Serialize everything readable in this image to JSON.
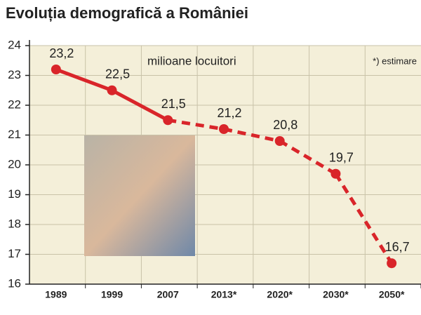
{
  "chart_data": {
    "type": "line",
    "title": "Evoluția demografică a României",
    "annotations": [
      "milioane locuitori",
      "*) estimare"
    ],
    "categories": [
      "1989",
      "1999",
      "2007",
      "2013*",
      "2020*",
      "2030*",
      "2050*"
    ],
    "values": [
      23.2,
      22.5,
      21.5,
      21.2,
      20.8,
      19.7,
      16.7
    ],
    "value_labels": [
      "23,2",
      "22,5",
      "21,5",
      "21,2",
      "20,8",
      "19,7",
      "16,7"
    ],
    "estimated": [
      false,
      false,
      false,
      true,
      true,
      true,
      true
    ],
    "color": "#d9252a",
    "ylim": [
      16,
      24
    ],
    "yticks": [
      16,
      17,
      18,
      19,
      20,
      21,
      22,
      23,
      24
    ],
    "grid": true
  }
}
